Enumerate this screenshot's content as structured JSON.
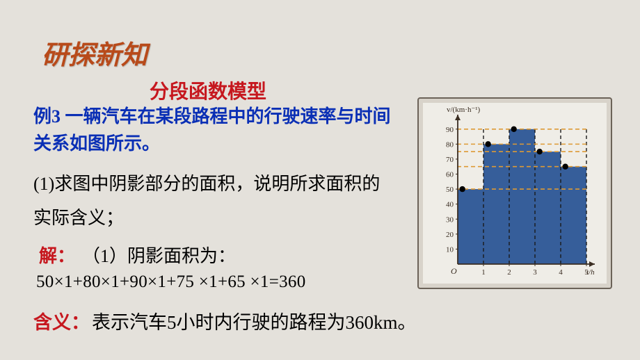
{
  "heading": "研探新知",
  "subtitle": "分段函数模型",
  "example_label": "例3",
  "example_body": " 一辆汽车在某段路程中的行驶速率与时间关系如图所示。",
  "q1": "(1)求图中阴影部分的面积，说明所求面积的实际含义；",
  "sol_label": "解：",
  "sol_body": "（1）阴影面积为：",
  "equation": "50×1+80×1+90×1+75 ×1+65 ×1=360",
  "meaning_label": "含义：",
  "meaning_body": "表示汽车5小时内行驶的路程为360km。",
  "chart": {
    "type": "step-bar",
    "x_values": [
      0,
      1,
      2,
      3,
      4,
      5
    ],
    "bar_values": [
      50,
      80,
      90,
      75,
      65
    ],
    "marker_points": [
      [
        0,
        50
      ],
      [
        1,
        80
      ],
      [
        2,
        90
      ],
      [
        3,
        75
      ],
      [
        4,
        65
      ]
    ],
    "y_ticks": [
      10,
      20,
      30,
      40,
      50,
      60,
      70,
      80,
      90
    ],
    "y_dash_lines": [
      50,
      65,
      75,
      80,
      90
    ],
    "x_label": "t/h",
    "y_label": "v/(km·h⁻¹)",
    "bar_color": "#365e9a",
    "bar_dash_color": "#1a1a1a",
    "y_dash_color": "#dd9a35",
    "axis_color": "#3a2d22",
    "bg_color": "#efede7",
    "text_color": "#3a2d22",
    "font_size": 11
  }
}
